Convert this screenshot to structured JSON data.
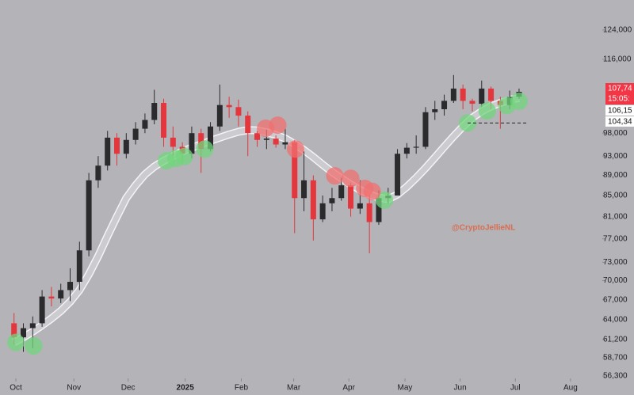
{
  "chart_data": {
    "type": "candlestick",
    "log_scale": true,
    "ylim": [
      56000,
      132800
    ],
    "yticks": [
      {
        "value": 124000,
        "label": "124,000"
      },
      {
        "value": 116000,
        "label": "116,000"
      },
      {
        "value": 98000,
        "label": "98,000"
      },
      {
        "value": 93000,
        "label": "93,000"
      },
      {
        "value": 89000,
        "label": "89,000"
      },
      {
        "value": 85000,
        "label": "85,000"
      },
      {
        "value": 81000,
        "label": "81,000"
      },
      {
        "value": 77000,
        "label": "77,000"
      },
      {
        "value": 73000,
        "label": "73,000"
      },
      {
        "value": 70000,
        "label": "70,000"
      },
      {
        "value": 67000,
        "label": "67,000"
      },
      {
        "value": 64000,
        "label": "64,000"
      },
      {
        "value": 61200,
        "label": "61,200"
      },
      {
        "value": 58700,
        "label": "58,700"
      },
      {
        "value": 56300,
        "label": "56,300"
      }
    ],
    "xlim": [
      -1.5,
      62.9
    ],
    "xticks": [
      {
        "value": 0.2,
        "label": "Oct"
      },
      {
        "value": 6.4,
        "label": "Nov"
      },
      {
        "value": 12.2,
        "label": "Dec"
      },
      {
        "value": 18.3,
        "label": "2025"
      },
      {
        "value": 24.3,
        "label": "Feb"
      },
      {
        "value": 29.9,
        "label": "Mar"
      },
      {
        "value": 35.8,
        "label": "Apr"
      },
      {
        "value": 41.8,
        "label": "May"
      },
      {
        "value": 47.7,
        "label": "Jun"
      },
      {
        "value": 53.6,
        "label": "Jul"
      },
      {
        "value": 59.5,
        "label": "Aug"
      }
    ],
    "up_color": "#2b2b2e",
    "down_color": "#e3363d",
    "open": [
      63500,
      61500,
      62800,
      63500,
      67500,
      67200,
      68500,
      69800,
      75000,
      88000,
      91000,
      97000,
      93500,
      96500,
      99000,
      101000,
      105000,
      97000,
      95000,
      93500,
      98000,
      94500,
      99500,
      104500,
      104000,
      102000,
      98000,
      96500,
      96800,
      95500,
      96000,
      84500,
      88000,
      80500,
      83500,
      84500,
      87000,
      82500,
      83500,
      80000,
      84500,
      85000,
      93500,
      94800,
      95000,
      102800,
      103500,
      105500,
      108500,
      105500,
      104800,
      108500,
      105500,
      104500,
      106500
    ],
    "high": [
      65000,
      63500,
      64500,
      68500,
      69000,
      69500,
      72000,
      76500,
      89500,
      93000,
      98500,
      98000,
      98000,
      100500,
      102500,
      108200,
      106000,
      99500,
      96000,
      99500,
      99000,
      100500,
      109500,
      106500,
      105800,
      103000,
      98500,
      98800,
      97500,
      99000,
      96500,
      94000,
      89000,
      85000,
      86500,
      88500,
      87500,
      88000,
      85000,
      86000,
      86500,
      94500,
      95800,
      97500,
      104000,
      105500,
      107000,
      111900,
      109500,
      106000,
      110500,
      109000,
      106500,
      108000,
      108500
    ],
    "low": [
      60500,
      59500,
      60000,
      63000,
      66000,
      66500,
      66800,
      68500,
      74000,
      86500,
      90000,
      91000,
      92500,
      95500,
      98000,
      100000,
      95000,
      93000,
      91500,
      92500,
      89500,
      94000,
      98500,
      101500,
      99500,
      93000,
      95000,
      94500,
      94800,
      94500,
      78000,
      82000,
      76700,
      80000,
      82000,
      84000,
      81000,
      81500,
      74500,
      79500,
      83500,
      85000,
      92500,
      93500,
      94500,
      101000,
      102000,
      105000,
      103500,
      103000,
      104000,
      103500,
      99000,
      103500,
      106000
    ],
    "close": [
      61500,
      62800,
      63500,
      67500,
      67200,
      68500,
      69800,
      75000,
      88000,
      91000,
      97000,
      93500,
      96500,
      99000,
      101000,
      105000,
      97000,
      95000,
      93500,
      98000,
      94500,
      99500,
      104500,
      104000,
      102000,
      98000,
      96500,
      96800,
      95500,
      96000,
      84500,
      88000,
      80500,
      83500,
      84500,
      87000,
      82500,
      83500,
      80000,
      84500,
      85000,
      93500,
      94800,
      95000,
      102800,
      103500,
      105500,
      108500,
      105500,
      104800,
      108500,
      105500,
      104500,
      106500,
      107700
    ],
    "moving_average": [
      60800,
      61500,
      62300,
      63200,
      64200,
      65300,
      66700,
      68500,
      71000,
      74000,
      77500,
      81000,
      84500,
      87000,
      89200,
      90800,
      92000,
      93000,
      94000,
      94800,
      95500,
      96300,
      97000,
      97700,
      98300,
      98700,
      98600,
      98200,
      97600,
      96800,
      95600,
      94300,
      92800,
      91200,
      89700,
      88400,
      87200,
      86100,
      85200,
      84600,
      84300,
      85200,
      86700,
      88500,
      90500,
      92700,
      95000,
      97300,
      99500,
      101500,
      103000,
      104200,
      105000,
      105700,
      106200
    ],
    "markers": [
      {
        "color": "#72d67c",
        "x": [
          0.2,
          2.1,
          16.3,
          17.3,
          18.2,
          20.4,
          39.6,
          48.5,
          50.6,
          52.7,
          54.0
        ],
        "values": [
          60800,
          60300,
          92000,
          92500,
          92900,
          94500,
          84100,
          100300,
          103100,
          104400,
          105400
        ]
      },
      {
        "color": "#f07070",
        "x": [
          26.9,
          28.2,
          30.1,
          34.3,
          36.0,
          37.5,
          38.3
        ],
        "values": [
          99100,
          99800,
          94500,
          88900,
          88400,
          86400,
          85800
        ]
      }
    ],
    "support_line": 100300,
    "support_range": [
      48.5,
      54.8
    ],
    "watermark": "@CryptoJellieNL",
    "price_tags": [
      {
        "value": 107740,
        "label": "107,74",
        "color": "#f23645"
      },
      {
        "value": 106150,
        "label": "106,15",
        "color": "#ffffff"
      },
      {
        "value": 104340,
        "label": "104,34",
        "color": "#ffffff"
      }
    ],
    "countdown": "15:05:"
  }
}
